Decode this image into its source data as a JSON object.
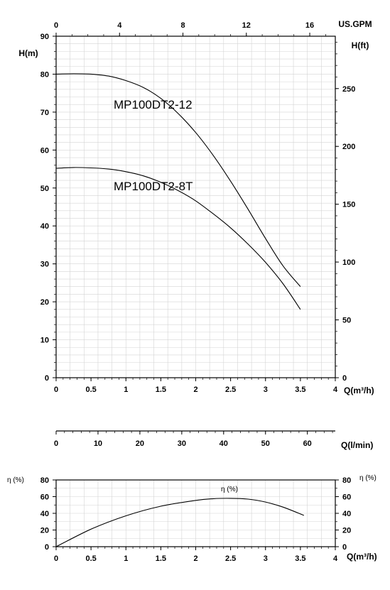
{
  "chart_data": [
    {
      "type": "line",
      "name": "head-curves",
      "x_label": "Q(m³/h)",
      "x_range": [
        0,
        4
      ],
      "x_ticks": [
        "0",
        "0.5",
        "1",
        "1.5",
        "2",
        "2.5",
        "3",
        "3.5",
        "4"
      ],
      "y_left_label": "H(m)",
      "y_left_range": [
        0,
        90
      ],
      "y_left_ticks": [
        "0",
        "10",
        "20",
        "30",
        "40",
        "50",
        "60",
        "70",
        "80",
        "90"
      ],
      "y_right_label": "H(ft)",
      "y_right_ticks": [
        "0",
        "50",
        "100",
        "150",
        "200",
        "250"
      ],
      "top_axis_label": "US.GPM",
      "top_axis_ticks": [
        "0",
        "4",
        "8",
        "12",
        "16"
      ],
      "grid": true,
      "series": [
        {
          "name": "MP100DT2-12",
          "x": [
            0,
            0.25,
            0.5,
            0.75,
            1.0,
            1.25,
            1.5,
            1.75,
            2.0,
            2.25,
            2.5,
            2.75,
            3.0,
            3.25,
            3.5
          ],
          "y": [
            80,
            80.1,
            80,
            79.5,
            78.3,
            76.5,
            73.6,
            69.6,
            64.6,
            58.6,
            51.8,
            44.4,
            36.7,
            29.5,
            24
          ]
        },
        {
          "name": "MP100DT2-8T",
          "x": [
            0,
            0.25,
            0.5,
            0.75,
            1.0,
            1.25,
            1.5,
            1.75,
            2.0,
            2.25,
            2.5,
            2.75,
            3.0,
            3.25,
            3.5
          ],
          "y": [
            55.2,
            55.4,
            55.3,
            55,
            54.3,
            53.2,
            51.5,
            49.3,
            46.6,
            43.2,
            39.5,
            35.2,
            30.4,
            24.8,
            18
          ]
        }
      ]
    },
    {
      "type": "line",
      "name": "efficiency-curve",
      "x_label": "Q(m³/h)",
      "x_range": [
        0,
        4
      ],
      "x_ticks": [
        "0",
        "0.5",
        "1",
        "1.5",
        "2",
        "2.5",
        "3",
        "3.5",
        "4"
      ],
      "y_left_label": "η (%)",
      "y_right_label": "η (%)",
      "y_range": [
        0,
        80
      ],
      "y_ticks": [
        "0",
        "20",
        "40",
        "60",
        "80"
      ],
      "grid": true,
      "series": [
        {
          "name": "η (%)",
          "x": [
            0,
            0.5,
            1.0,
            1.5,
            2.0,
            2.25,
            2.5,
            2.75,
            3.0,
            3.25,
            3.55
          ],
          "y": [
            0,
            21,
            37,
            48.5,
            55.5,
            57.5,
            58,
            57,
            53.5,
            47.5,
            37.5
          ]
        }
      ]
    }
  ],
  "flow_axis": {
    "label": "Q(l/min)",
    "ticks": [
      "0",
      "10",
      "20",
      "30",
      "40",
      "50",
      "60"
    ]
  }
}
